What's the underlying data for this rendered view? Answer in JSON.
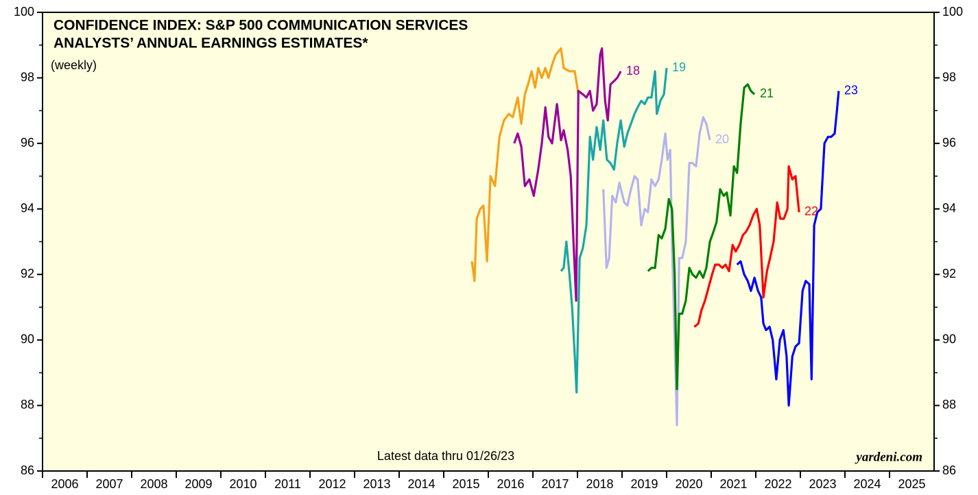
{
  "chart_data": {
    "type": "line",
    "title": "CONFIDENCE INDEX: S&P 500 COMMUNICATION SERVICES",
    "subtitle": "ANALYSTS’ ANNUAL EARNINGS ESTIMATES*",
    "frequency": "(weekly)",
    "note": "Latest data thru 01/26/23",
    "source": "yardeni.com",
    "xlim": [
      2006,
      2026
    ],
    "xticks": [
      2006,
      2007,
      2008,
      2009,
      2010,
      2011,
      2012,
      2013,
      2014,
      2015,
      2016,
      2017,
      2018,
      2019,
      2020,
      2021,
      2022,
      2023,
      2024,
      2025
    ],
    "ylim": [
      86,
      100
    ],
    "yticks": [
      86,
      88,
      90,
      92,
      94,
      96,
      98,
      100
    ],
    "series": [
      {
        "color": "#f7a11a",
        "x": [
          2015.63,
          2015.69,
          2015.74,
          2015.82,
          2015.89,
          2015.97,
          2016.05,
          2016.15,
          2016.25,
          2016.35,
          2016.46,
          2016.55,
          2016.66,
          2016.74,
          2016.82,
          2016.89,
          2016.97,
          2017.05,
          2017.12,
          2017.2,
          2017.28,
          2017.35,
          2017.43,
          2017.51,
          2017.63,
          2017.69,
          2017.82,
          2017.94,
          2018.02
        ],
        "values": [
          92.4,
          91.8,
          93.7,
          94.0,
          94.1,
          92.4,
          95.0,
          94.7,
          96.2,
          96.7,
          96.9,
          96.8,
          97.4,
          96.6,
          97.5,
          97.8,
          98.2,
          97.7,
          98.3,
          98.0,
          98.3,
          98.0,
          98.4,
          98.7,
          98.9,
          98.3,
          98.2,
          98.2,
          97.5
        ]
      },
      {
        "name": "18",
        "color": "#990099",
        "x": [
          2016.58,
          2016.66,
          2016.74,
          2016.82,
          2016.92,
          2017.02,
          2017.12,
          2017.2,
          2017.28,
          2017.35,
          2017.43,
          2017.54,
          2017.63,
          2017.69,
          2017.78,
          2017.85,
          2017.91,
          2017.97,
          2018.02,
          2018.12,
          2018.2,
          2018.28,
          2018.35,
          2018.43,
          2018.51,
          2018.55,
          2018.62,
          2018.68,
          2018.74,
          2018.82,
          2018.89,
          2018.97
        ],
        "values": [
          96.0,
          96.3,
          95.9,
          94.7,
          94.9,
          94.4,
          95.2,
          96.0,
          97.1,
          96.2,
          96.0,
          97.2,
          96.1,
          96.4,
          95.8,
          95.0,
          93.0,
          91.2,
          97.6,
          97.5,
          97.4,
          97.6,
          97.0,
          97.2,
          98.7,
          98.9,
          97.3,
          96.7,
          97.8,
          97.9,
          98.0,
          98.2
        ]
      },
      {
        "name": "19",
        "color": "#1aa6a6",
        "x": [
          2017.63,
          2017.69,
          2017.75,
          2017.82,
          2017.88,
          2017.94,
          2017.98,
          2018.05,
          2018.12,
          2018.2,
          2018.28,
          2018.35,
          2018.43,
          2018.51,
          2018.58,
          2018.66,
          2018.74,
          2018.82,
          2018.89,
          2018.97,
          2019.05,
          2019.12,
          2019.2,
          2019.28,
          2019.35,
          2019.43,
          2019.51,
          2019.58,
          2019.66,
          2019.74,
          2019.78,
          2019.86,
          2019.94,
          2020.0
        ],
        "values": [
          92.1,
          92.2,
          93.0,
          92.0,
          91.0,
          89.5,
          88.4,
          92.5,
          92.8,
          93.5,
          96.2,
          95.5,
          96.5,
          95.8,
          96.7,
          95.5,
          95.4,
          95.2,
          96.0,
          96.7,
          95.9,
          96.3,
          96.6,
          96.9,
          97.1,
          97.3,
          97.2,
          97.4,
          97.4,
          98.2,
          96.9,
          97.3,
          97.5,
          98.3
        ]
      },
      {
        "name": "20",
        "color": "#b3b3f0",
        "x": [
          2018.58,
          2018.65,
          2018.71,
          2018.78,
          2018.86,
          2018.94,
          2019.05,
          2019.12,
          2019.2,
          2019.28,
          2019.35,
          2019.43,
          2019.51,
          2019.58,
          2019.66,
          2019.74,
          2019.82,
          2019.89,
          2019.97,
          2020.02,
          2020.08,
          2020.12,
          2020.18,
          2020.23,
          2020.28,
          2020.35,
          2020.43,
          2020.51,
          2020.58,
          2020.66,
          2020.74,
          2020.82,
          2020.89,
          2020.97
        ],
        "values": [
          94.6,
          92.2,
          92.5,
          94.4,
          94.2,
          94.8,
          94.2,
          94.1,
          94.6,
          95.0,
          94.9,
          93.5,
          94.0,
          93.9,
          94.9,
          94.7,
          94.9,
          95.5,
          96.3,
          95.5,
          95.8,
          93.0,
          90.0,
          87.4,
          92.5,
          92.5,
          93.0,
          95.4,
          95.4,
          95.3,
          96.3,
          96.8,
          96.6,
          96.1
        ]
      },
      {
        "name": "21",
        "color": "#007f00",
        "x": [
          2019.58,
          2019.66,
          2019.74,
          2019.82,
          2019.89,
          2019.97,
          2020.05,
          2020.12,
          2020.18,
          2020.23,
          2020.28,
          2020.35,
          2020.43,
          2020.51,
          2020.58,
          2020.66,
          2020.74,
          2020.82,
          2020.89,
          2020.97,
          2021.05,
          2021.12,
          2021.2,
          2021.28,
          2021.35,
          2021.43,
          2021.51,
          2021.58,
          2021.66,
          2021.74,
          2021.82,
          2021.89,
          2021.97
        ],
        "values": [
          92.1,
          92.2,
          92.2,
          93.2,
          93.1,
          93.4,
          94.3,
          94.0,
          92.0,
          88.5,
          90.8,
          90.8,
          91.2,
          92.2,
          92.0,
          91.9,
          92.1,
          91.9,
          92.2,
          93.0,
          93.3,
          93.6,
          94.6,
          94.4,
          94.5,
          93.8,
          95.3,
          95.1,
          96.6,
          97.7,
          97.8,
          97.6,
          97.5
        ]
      },
      {
        "name": "22",
        "color": "#ff0000",
        "x": [
          2020.62,
          2020.71,
          2020.78,
          2020.86,
          2020.94,
          2021.02,
          2021.09,
          2021.17,
          2021.25,
          2021.32,
          2021.4,
          2021.48,
          2021.55,
          2021.63,
          2021.71,
          2021.78,
          2021.86,
          2021.94,
          2022.02,
          2022.09,
          2022.17,
          2022.25,
          2022.32,
          2022.4,
          2022.48,
          2022.55,
          2022.63,
          2022.71,
          2022.74,
          2022.82,
          2022.89,
          2022.97
        ],
        "values": [
          90.4,
          90.5,
          90.9,
          91.2,
          91.6,
          92.0,
          92.3,
          92.3,
          92.2,
          92.3,
          92.1,
          92.9,
          92.7,
          92.9,
          93.2,
          93.3,
          93.5,
          93.8,
          94.0,
          93.5,
          91.3,
          92.1,
          92.5,
          93.0,
          94.2,
          93.7,
          93.7,
          94.0,
          95.3,
          94.9,
          95.0,
          93.9
        ]
      },
      {
        "name": "23",
        "color": "#0000ff",
        "x": [
          2021.58,
          2021.66,
          2021.74,
          2021.82,
          2021.89,
          2021.97,
          2022.05,
          2022.12,
          2022.17,
          2022.23,
          2022.31,
          2022.38,
          2022.46,
          2022.54,
          2022.62,
          2022.69,
          2022.74,
          2022.82,
          2022.89,
          2022.97,
          2023.05,
          2023.12,
          2023.2,
          2023.25,
          2023.31,
          2023.38,
          2023.46,
          2023.54,
          2023.62,
          2023.69,
          2023.77,
          2023.82,
          2023.86
        ],
        "values": [
          92.3,
          92.4,
          92.0,
          91.8,
          91.5,
          91.9,
          91.5,
          91.3,
          90.5,
          90.3,
          90.4,
          90.0,
          88.8,
          90.0,
          90.3,
          89.5,
          88.0,
          89.5,
          89.8,
          89.9,
          91.5,
          91.8,
          91.7,
          88.8,
          93.5,
          93.9,
          94.0,
          96.0,
          96.2,
          96.2,
          96.3,
          97.0,
          97.6
        ]
      }
    ]
  }
}
